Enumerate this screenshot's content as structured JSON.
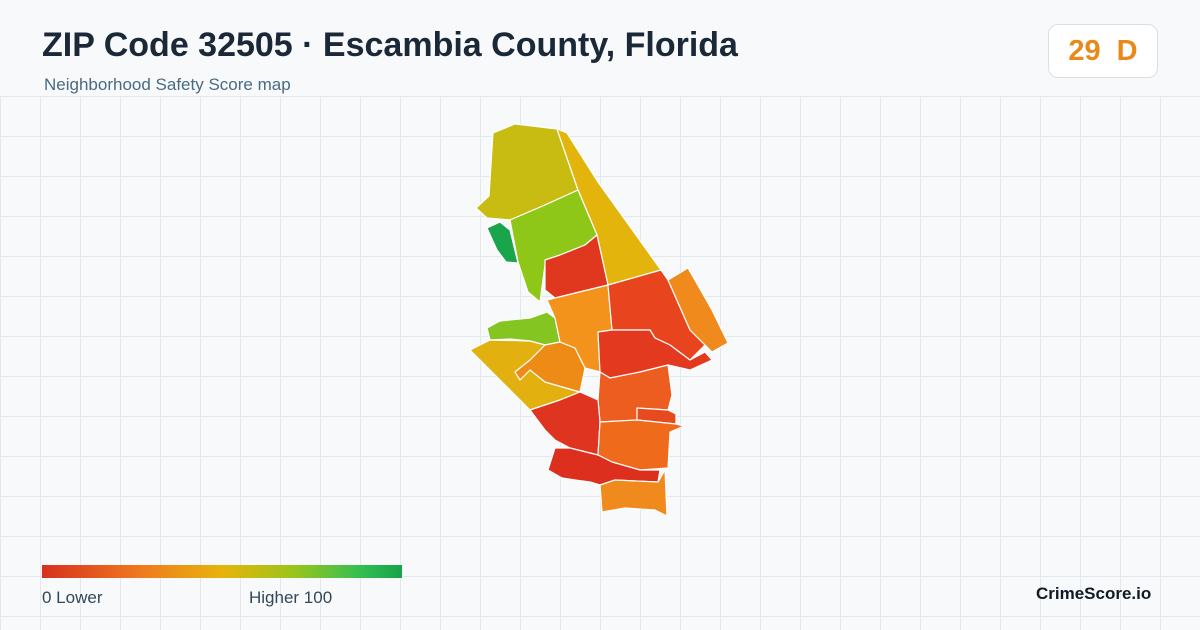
{
  "header": {
    "title": "ZIP Code 32505 · Escambia County, Florida",
    "subtitle": "Neighborhood Safety Score map"
  },
  "score": {
    "value": "29",
    "grade": "D",
    "color": "#e8891a"
  },
  "legend": {
    "min_label": "0  Lower",
    "max_label": "Higher  100",
    "colors": [
      "#d7301f",
      "#f07b1e",
      "#e6b40c",
      "#9ac51a",
      "#35bf52",
      "#16a34a"
    ]
  },
  "brand": "CrimeScore.io",
  "map": {
    "areas": [
      {
        "name": "north-olive",
        "color": "#c8bb12"
      },
      {
        "name": "east-strip-yellow",
        "color": "#e2b40c"
      },
      {
        "name": "west-green-dark",
        "color": "#1aa54d"
      },
      {
        "name": "central-lime",
        "color": "#8fc719"
      },
      {
        "name": "red-north-central",
        "color": "#e0381f"
      },
      {
        "name": "lime-west-arm",
        "color": "#84c521"
      },
      {
        "name": "yellow-west",
        "color": "#e3b10f"
      },
      {
        "name": "orange-center",
        "color": "#ee8a16"
      },
      {
        "name": "orange-light",
        "color": "#f3931c"
      },
      {
        "name": "red-orange-east",
        "color": "#e8451f"
      },
      {
        "name": "orange-far-east",
        "color": "#f08a1c"
      },
      {
        "name": "red-east-mid",
        "color": "#e3391f"
      },
      {
        "name": "orange-mid-south",
        "color": "#ec5d1f"
      },
      {
        "name": "red-orange-narrow",
        "color": "#e84a1f"
      },
      {
        "name": "red-southwest",
        "color": "#df3420"
      },
      {
        "name": "orange-south",
        "color": "#ef6a1a"
      },
      {
        "name": "red-south",
        "color": "#dc2f1e"
      },
      {
        "name": "orange-bottom",
        "color": "#f08a1c"
      }
    ]
  }
}
